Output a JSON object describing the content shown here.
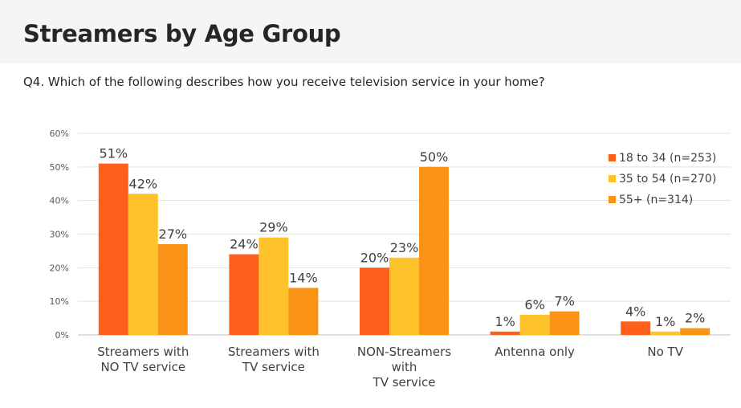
{
  "header": {
    "title": "Streamers by Age Group",
    "subtitle": "Q4. Which of the following describes how you receive television service in your home?"
  },
  "chart_data": {
    "type": "bar",
    "categories": [
      [
        "Streamers with",
        "NO TV service"
      ],
      [
        "Streamers with",
        "TV service"
      ],
      [
        "NON-Streamers",
        "with",
        "TV service"
      ],
      [
        "Antenna only"
      ],
      [
        "No TV"
      ]
    ],
    "series": [
      {
        "name": "18 to 34 (n=253)",
        "color": "#fe5f1a",
        "values": [
          51,
          24,
          20,
          1,
          4
        ],
        "labels": [
          "51%",
          "24%",
          "20%",
          "1%",
          "4%"
        ]
      },
      {
        "name": "35 to 54 (n=270)",
        "color": "#fec32b",
        "values": [
          42,
          29,
          23,
          6,
          1
        ],
        "labels": [
          "42%",
          "29%",
          "23%",
          "6%",
          "1%"
        ]
      },
      {
        "name": "55+ (n=314)",
        "color": "#fb9316",
        "values": [
          27,
          14,
          50,
          7,
          2
        ],
        "labels": [
          "27%",
          "14%",
          "50%",
          "7%",
          "2%"
        ]
      }
    ],
    "yticks": [
      "0%",
      "10%",
      "20%",
      "30%",
      "40%",
      "50%",
      "60%"
    ],
    "ylim": [
      0,
      60
    ],
    "grid": true,
    "legend_position": "top-right"
  }
}
